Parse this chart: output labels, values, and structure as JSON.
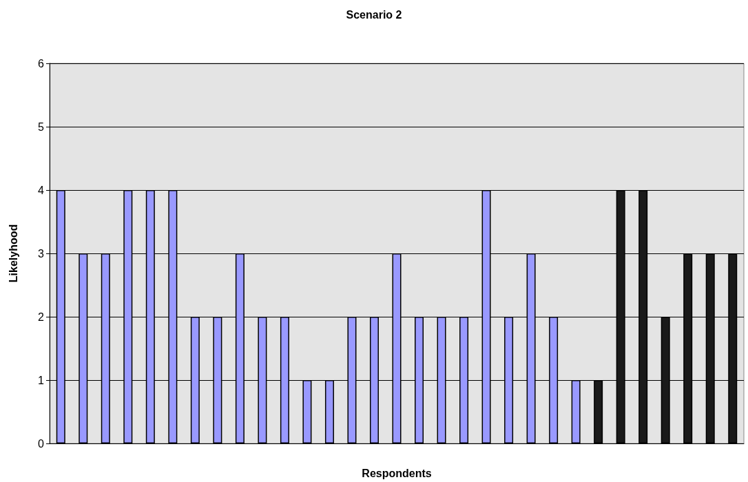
{
  "chart_data": {
    "type": "bar",
    "title": "Scenario 2",
    "xlabel": "Respondents",
    "ylabel": "Likelyhood",
    "categories": [
      null,
      null,
      null,
      null,
      null,
      null,
      null,
      null,
      null,
      null,
      null,
      null,
      null,
      null,
      null,
      null,
      null,
      null,
      null,
      null,
      null,
      null,
      null,
      null,
      null,
      null,
      null,
      null,
      null,
      null,
      null
    ],
    "values": [
      4,
      3,
      3,
      4,
      4,
      4,
      2,
      2,
      3,
      2,
      2,
      1,
      1,
      2,
      2,
      3,
      2,
      2,
      2,
      4,
      2,
      3,
      2,
      1,
      1,
      4,
      4,
      2,
      3,
      3,
      3
    ],
    "colors": [
      "#9999ff",
      "#9999ff",
      "#9999ff",
      "#9999ff",
      "#9999ff",
      "#9999ff",
      "#9999ff",
      "#9999ff",
      "#9999ff",
      "#9999ff",
      "#9999ff",
      "#9999ff",
      "#9999ff",
      "#9999ff",
      "#9999ff",
      "#9999ff",
      "#9999ff",
      "#9999ff",
      "#9999ff",
      "#9999ff",
      "#9999ff",
      "#9999ff",
      "#9999ff",
      "#9999ff",
      "#1a1a1a",
      "#1a1a1a",
      "#1a1a1a",
      "#1a1a1a",
      "#1a1a1a",
      "#1a1a1a",
      "#1a1a1a"
    ],
    "ylim": [
      0,
      6
    ],
    "yticks": [
      0,
      1,
      2,
      3,
      4,
      5,
      6
    ],
    "grid": "y"
  }
}
